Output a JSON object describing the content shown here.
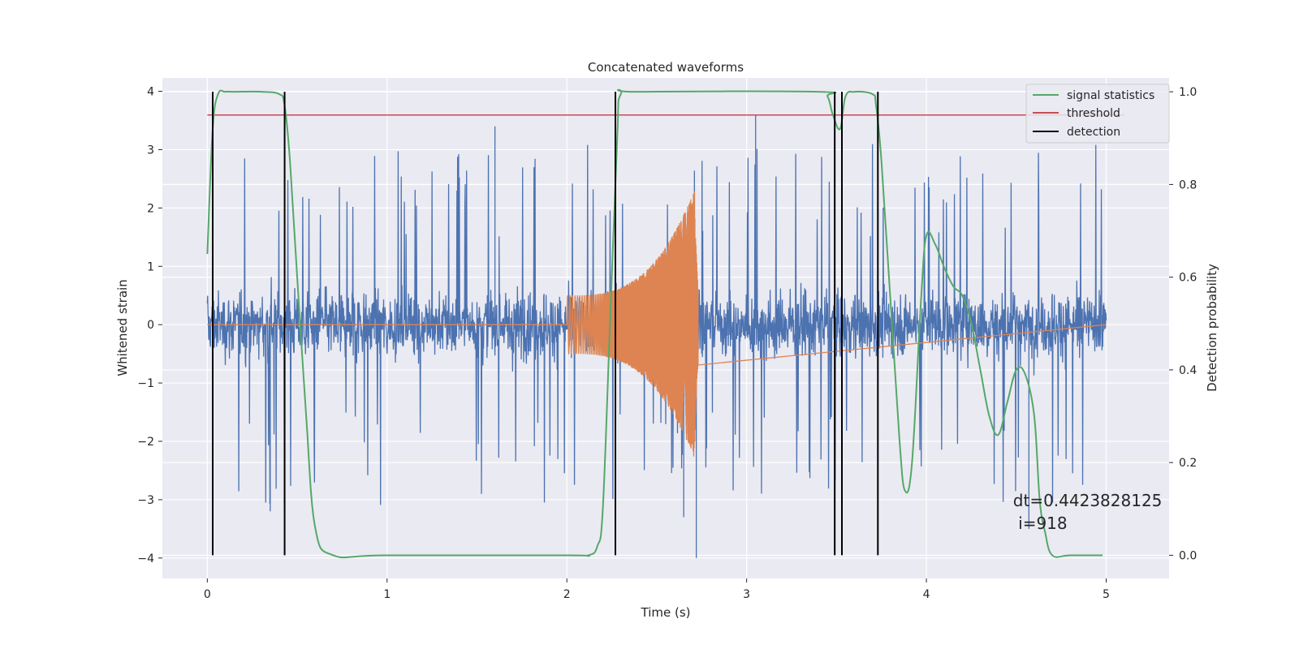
{
  "chart_data": {
    "type": "line",
    "title": "Concatenated waveforms",
    "xlabel": "Time (s)",
    "ylabel": "Whitened strain",
    "y2label": "Detection probability",
    "xlim": [
      -0.25,
      5.35
    ],
    "ylim": [
      -4.35,
      4.23
    ],
    "y2lim": [
      -0.05,
      1.03
    ],
    "xticks": [
      0,
      1,
      2,
      3,
      4,
      5
    ],
    "yticks": [
      -4,
      -3,
      -2,
      -1,
      0,
      1,
      2,
      3,
      4
    ],
    "y2ticks": [
      0.0,
      0.2,
      0.4,
      0.6,
      0.8,
      1.0
    ],
    "grid": true,
    "legend_position": "top-right",
    "colors": {
      "strain": "#4c72b0",
      "injected_signal": "#dd8452",
      "signal_statistics": "#55a868",
      "threshold": "#c44e52",
      "detection": "#000000",
      "axes_bg": "#eaeaf2"
    },
    "series": [
      {
        "name": "signal statistics",
        "axis": "right",
        "x": [
          0.0,
          0.03,
          0.06,
          0.1,
          0.15,
          0.3,
          0.4,
          0.43,
          0.46,
          0.5,
          0.55,
          0.6,
          0.7,
          1.0,
          2.0,
          2.12,
          2.17,
          2.2,
          2.24,
          2.28,
          2.3,
          2.4,
          3.4,
          3.45,
          3.48,
          3.52,
          3.55,
          3.6,
          3.7,
          3.72,
          3.75,
          3.8,
          3.85,
          3.88,
          3.92,
          3.97,
          4.0,
          4.05,
          4.1,
          4.15,
          4.2,
          4.25,
          4.3,
          4.35,
          4.4,
          4.45,
          4.5,
          4.55,
          4.6,
          4.63,
          4.66,
          4.7,
          4.8,
          4.98
        ],
        "y": [
          0.65,
          0.92,
          0.995,
          1.0,
          1.0,
          1.0,
          0.995,
          0.97,
          0.85,
          0.6,
          0.3,
          0.06,
          0.0,
          0.0,
          0.0,
          0.0,
          0.02,
          0.1,
          0.5,
          0.9,
          0.995,
          1.0,
          1.0,
          0.99,
          0.95,
          0.92,
          0.99,
          1.0,
          0.995,
          0.97,
          0.85,
          0.55,
          0.25,
          0.14,
          0.2,
          0.55,
          0.69,
          0.67,
          0.62,
          0.58,
          0.56,
          0.5,
          0.4,
          0.3,
          0.26,
          0.33,
          0.4,
          0.39,
          0.3,
          0.12,
          0.05,
          0.0,
          0.0,
          0.0
        ]
      },
      {
        "name": "threshold",
        "axis": "right",
        "x": [
          0.0,
          5.1
        ],
        "y": [
          0.95,
          0.95
        ]
      },
      {
        "name": "detection",
        "axis": "right",
        "x": [
          0.03,
          0.43,
          2.27,
          3.49,
          3.53,
          3.73
        ],
        "y_range": [
          0.0,
          1.0
        ]
      },
      {
        "name": "",
        "axis": "left",
        "x_range": [
          0.0,
          5.0
        ],
        "noise_amplitude": 0.7,
        "peak_range": [
          -4.0,
          3.4
        ]
      },
      {
        "name": "",
        "axis": "left",
        "x_range": [
          2.0,
          2.73
        ],
        "chirp_start_amplitude": 0.5,
        "chirp_peak_amplitude": 2.3,
        "chirp_peak_time": 2.71
      }
    ],
    "annotation": {
      "line1": "dt=0.4423828125",
      "line2": " i=918",
      "x": 4.5,
      "y": -3.0
    }
  }
}
